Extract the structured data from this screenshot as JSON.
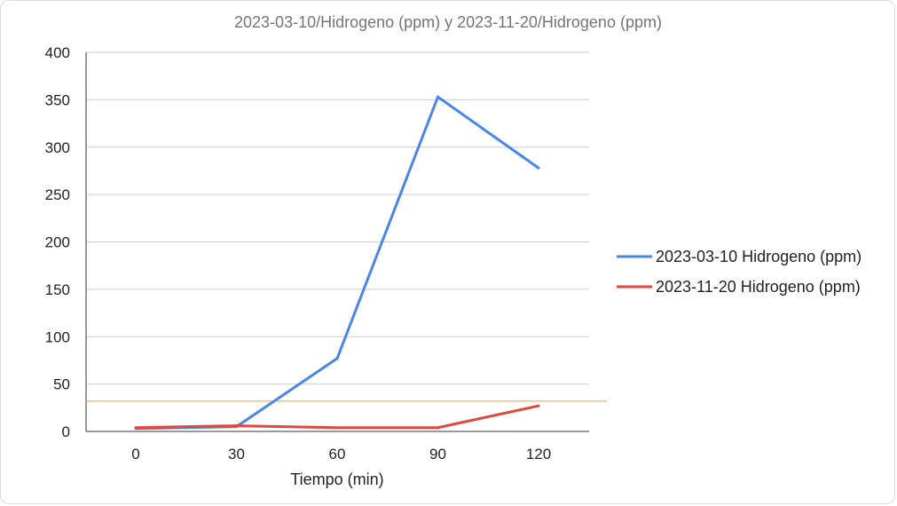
{
  "chart_data": {
    "type": "line",
    "title": "2023-03-10/Hidrogeno (ppm) y 2023-11-20/Hidrogeno (ppm)",
    "xlabel": "Tiempo (min)",
    "ylabel": "",
    "x": [
      0,
      30,
      60,
      90,
      120
    ],
    "xticks": [
      "0",
      "30",
      "60",
      "90",
      "120"
    ],
    "ylim": [
      0,
      400
    ],
    "yticks": [
      0,
      50,
      100,
      150,
      200,
      250,
      300,
      350,
      400
    ],
    "grid": true,
    "legend": "right",
    "series": [
      {
        "name": "2023-03-10 Hidrogeno (ppm)",
        "color": "#4a86e8",
        "values": [
          3,
          5,
          77,
          353,
          278
        ]
      },
      {
        "name": "2023-11-20 Hidrogeno (ppm)",
        "color": "#e0483d",
        "values": [
          4,
          6,
          4,
          4,
          27
        ]
      }
    ],
    "reference_line": {
      "value": 32,
      "color": "#e3a33b"
    }
  }
}
